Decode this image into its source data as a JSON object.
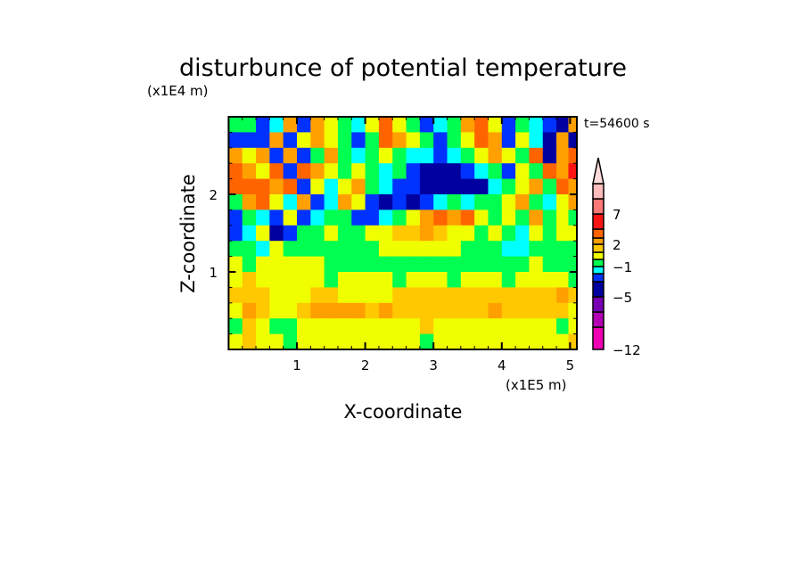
{
  "chart_data": {
    "type": "heatmap",
    "title": "disturbunce of potential temperature",
    "xlabel": "X-coordinate",
    "ylabel": "Z-coordinate",
    "x_unit": "(x1E5 m)",
    "y_unit": "(x1E4 m)",
    "annotation": "t=54600 s",
    "xlim": [
      0,
      5.1
    ],
    "ylim": [
      0,
      3.0
    ],
    "x_ticks": [
      1,
      2,
      3,
      4,
      5
    ],
    "y_ticks": [
      1,
      2
    ],
    "x_tick_labels": [
      "1",
      "2",
      "3",
      "4",
      "5"
    ],
    "y_tick_labels": [
      "1",
      "2"
    ],
    "colorbar": {
      "levels": [
        -12,
        -9,
        -7,
        -5,
        -3,
        -2,
        -1,
        0,
        1,
        2,
        3,
        5,
        7,
        9,
        12
      ],
      "colors": [
        "#f000b4",
        "#b400b4",
        "#7800b4",
        "#0000a0",
        "#0032ff",
        "#00ffff",
        "#00ff50",
        "#f0ff00",
        "#ffc800",
        "#ffa000",
        "#ff6400",
        "#ff1414",
        "#ff7878",
        "#ffbcbc"
      ],
      "extend_max_color": "#ffdcdc",
      "labels": [
        "7",
        "2",
        "-1",
        "-5",
        "-12"
      ],
      "label_values": [
        7,
        2,
        -1,
        -5,
        -12
      ]
    },
    "x": [
      0.1,
      0.3,
      0.5,
      0.7,
      0.9,
      1.1,
      1.3,
      1.5,
      1.7,
      1.9,
      2.1,
      2.3,
      2.5,
      2.7,
      2.9,
      3.1,
      3.3,
      3.5,
      3.7,
      3.9,
      4.1,
      4.3,
      4.5,
      4.7,
      4.9,
      5.05
    ],
    "z": [
      2.9,
      2.7,
      2.5,
      2.3,
      2.1,
      1.9,
      1.7,
      1.5,
      1.3,
      1.1,
      0.9,
      0.7,
      0.5,
      0.3,
      0.1
    ],
    "values": [
      [
        -0.5,
        -0.5,
        -2.5,
        -1.5,
        2.5,
        -2.5,
        2.5,
        0.5,
        -0.5,
        -1.5,
        0.5,
        4,
        0.5,
        -0.5,
        -2.5,
        -1.5,
        -0.5,
        2.5,
        4,
        0.5,
        -2.5,
        -0.5,
        -1.5,
        -2.5,
        -4,
        2.5
      ],
      [
        -2.5,
        -2.5,
        -2.5,
        2.5,
        -2.5,
        0.5,
        2.5,
        0.5,
        -0.5,
        -2.5,
        -0.5,
        4,
        2.5,
        0.5,
        -0.5,
        -2.5,
        -0.5,
        0.5,
        4,
        2.5,
        -2.5,
        0.5,
        -1.5,
        -4,
        2.5,
        -4
      ],
      [
        2.5,
        0.5,
        2.5,
        -2.5,
        2.5,
        -2.5,
        -0.5,
        2.5,
        -0.5,
        -1.5,
        -0.5,
        0.5,
        -0.5,
        -1.5,
        -1.5,
        -2.5,
        -1.5,
        -0.5,
        0.5,
        2.5,
        0.5,
        -0.5,
        4,
        -4,
        2.5,
        4
      ],
      [
        4,
        2.5,
        0.5,
        4,
        -2.5,
        4,
        2.5,
        0.5,
        -0.5,
        0.5,
        -0.5,
        -1.5,
        -0.5,
        -2.5,
        -4,
        -4,
        -4,
        -2.5,
        -1.5,
        -0.5,
        -2.5,
        0.5,
        -0.5,
        4,
        2.5,
        6
      ],
      [
        4,
        4,
        4,
        2.5,
        4,
        -2.5,
        0.5,
        -1.5,
        0.5,
        2.5,
        -0.5,
        -1.5,
        -2.5,
        -2.5,
        -4,
        -4,
        -4,
        -4,
        -4,
        -1.5,
        -0.5,
        0.5,
        2.5,
        -0.5,
        4,
        2.5
      ],
      [
        -0.5,
        2.5,
        4,
        0.5,
        -1.5,
        2.5,
        -2.5,
        -1.5,
        2.5,
        0.5,
        -2.5,
        -4,
        -2.5,
        -4,
        -2.5,
        -1.5,
        -0.5,
        -1.5,
        -0.5,
        -0.5,
        0.5,
        2.5,
        -0.5,
        -1.5,
        0.5,
        2.5
      ],
      [
        -2.5,
        -0.5,
        -1.5,
        -2.5,
        0.5,
        -2.5,
        -1.5,
        -0.5,
        -0.5,
        -2.5,
        -2.5,
        -1.5,
        -0.5,
        0.5,
        2.5,
        4,
        2.5,
        4,
        0.5,
        -0.5,
        0.5,
        -0.5,
        2.5,
        -0.5,
        0.5,
        -0.5
      ],
      [
        -2.5,
        -1.5,
        0.5,
        -4,
        -2.5,
        -0.5,
        -0.5,
        0.5,
        -0.5,
        -0.5,
        0.5,
        0.5,
        1.5,
        1.5,
        2.5,
        1.5,
        0.5,
        0.5,
        -0.5,
        0.5,
        -0.5,
        -1.5,
        0.5,
        -0.5,
        0.5,
        0.5
      ],
      [
        -0.5,
        -0.5,
        -1.5,
        0.5,
        -0.5,
        -0.5,
        -0.5,
        -0.5,
        -0.5,
        -0.5,
        -0.5,
        0.5,
        0.5,
        0.5,
        0.5,
        0.5,
        0.5,
        -0.5,
        -0.5,
        -0.5,
        -1.5,
        -1.5,
        -0.5,
        -0.5,
        -0.5,
        -0.5
      ],
      [
        0.5,
        -0.5,
        0.5,
        0.5,
        0.5,
        0.5,
        0.5,
        -0.5,
        -0.5,
        -0.5,
        -0.5,
        -0.5,
        -0.5,
        -0.5,
        -0.5,
        -0.5,
        -0.5,
        -0.5,
        -0.5,
        -0.5,
        -0.5,
        -0.5,
        0.5,
        -0.5,
        -0.5,
        -0.5
      ],
      [
        0.5,
        1.5,
        0.5,
        0.5,
        0.5,
        0.5,
        0.5,
        -0.5,
        0.5,
        0.5,
        0.5,
        0.5,
        -0.5,
        0.5,
        0.5,
        0.5,
        -0.5,
        0.5,
        0.5,
        0.5,
        -0.5,
        0.5,
        0.5,
        0.5,
        0.5,
        -0.5
      ],
      [
        1.5,
        1.5,
        1.5,
        0.5,
        0.5,
        0.5,
        1.5,
        1.5,
        0.5,
        0.5,
        0.5,
        0.5,
        1.5,
        1.5,
        1.5,
        1.5,
        1.5,
        1.5,
        1.5,
        1.5,
        1.5,
        1.5,
        1.5,
        1.5,
        2.5,
        1.5
      ],
      [
        0.5,
        2.5,
        1.5,
        0.5,
        0.5,
        1.5,
        2.5,
        2.5,
        2.5,
        2.5,
        1.5,
        2.5,
        1.5,
        1.5,
        1.5,
        1.5,
        1.5,
        1.5,
        1.5,
        2.5,
        1.5,
        1.5,
        1.5,
        1.5,
        1.5,
        0.5
      ],
      [
        -0.5,
        1.5,
        0.5,
        -0.5,
        -0.5,
        0.5,
        0.5,
        0.5,
        0.5,
        0.5,
        0.5,
        0.5,
        0.5,
        0.5,
        1.5,
        0.5,
        0.5,
        0.5,
        0.5,
        0.5,
        0.5,
        0.5,
        0.5,
        0.5,
        -0.5,
        0.5
      ],
      [
        0.5,
        1.5,
        0.5,
        0.5,
        -0.5,
        0.5,
        0.5,
        0.5,
        0.5,
        0.5,
        0.5,
        0.5,
        0.5,
        0.5,
        -0.5,
        0.5,
        0.5,
        0.5,
        0.5,
        0.5,
        0.5,
        0.5,
        0.5,
        0.5,
        0.5,
        1.5
      ]
    ]
  }
}
